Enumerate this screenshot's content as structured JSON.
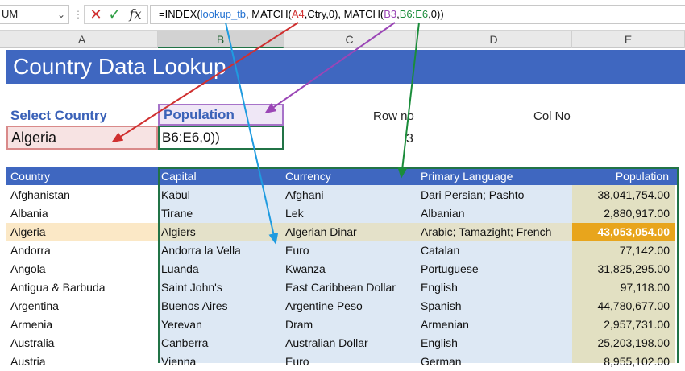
{
  "formula_bar": {
    "name_box": "UM",
    "cancel_icon": "✕",
    "enter_icon": "✓",
    "fx_label": "fx",
    "formula_parts": [
      {
        "text": "=INDEX(",
        "color": "default"
      },
      {
        "text": "lookup_tb",
        "color": "blue"
      },
      {
        "text": ", MATCH(",
        "color": "default"
      },
      {
        "text": "A4",
        "color": "red"
      },
      {
        "text": ",Ctry,0), MATCH(",
        "color": "default"
      },
      {
        "text": "B3",
        "color": "purple"
      },
      {
        "text": ",",
        "color": "default"
      },
      {
        "text": "B6:E6",
        "color": "green"
      },
      {
        "text": ",0))",
        "color": "default"
      }
    ]
  },
  "columns": [
    "A",
    "B",
    "C",
    "D",
    "E"
  ],
  "sheet": {
    "title": "Country Data Lookup",
    "select_country_label": "Select Country",
    "population_label": "Population",
    "row_no_label": "Row no",
    "col_no_label": "Col No",
    "country_value": "Algeria",
    "editing_text": "B6:E6,0))",
    "row_no_value": "3"
  },
  "table": {
    "headers": [
      "Country",
      "Capital",
      "Currency",
      "Primary Language",
      "Population"
    ],
    "rows": [
      [
        "Afghanistan",
        "Kabul",
        "Afghani",
        "Dari Persian; Pashto",
        "38,041,754.00"
      ],
      [
        "Albania",
        "Tirane",
        "Lek",
        "Albanian",
        "2,880,917.00"
      ],
      [
        "Algeria",
        "Algiers",
        "Algerian Dinar",
        "Arabic; Tamazight; French",
        "43,053,054.00"
      ],
      [
        "Andorra",
        "Andorra la Vella",
        "Euro",
        "Catalan",
        "77,142.00"
      ],
      [
        "Angola",
        "Luanda",
        "Kwanza",
        "Portuguese",
        "31,825,295.00"
      ],
      [
        "Antigua & Barbuda",
        "Saint John's",
        "East Caribbean Dollar",
        "English",
        "97,118.00"
      ],
      [
        "Argentina",
        "Buenos Aires",
        "Argentine Peso",
        "Spanish",
        "44,780,677.00"
      ],
      [
        "Armenia",
        "Yerevan",
        "Dram",
        "Armenian",
        "2,957,731.00"
      ],
      [
        "Australia",
        "Canberra",
        "Australian Dollar",
        "English",
        "25,203,198.00"
      ],
      [
        "Austria",
        "Vienna",
        "Euro",
        "German",
        "8,955,102.00"
      ]
    ],
    "selected_row_index": 2
  },
  "colors": {
    "title_bg": "#3f67c0",
    "ref_red": "#d03030",
    "ref_purple": "#9b46b6",
    "ref_green": "#1a8c3a",
    "ref_blue": "#1f9be0",
    "highlight": "#e8a51c"
  }
}
